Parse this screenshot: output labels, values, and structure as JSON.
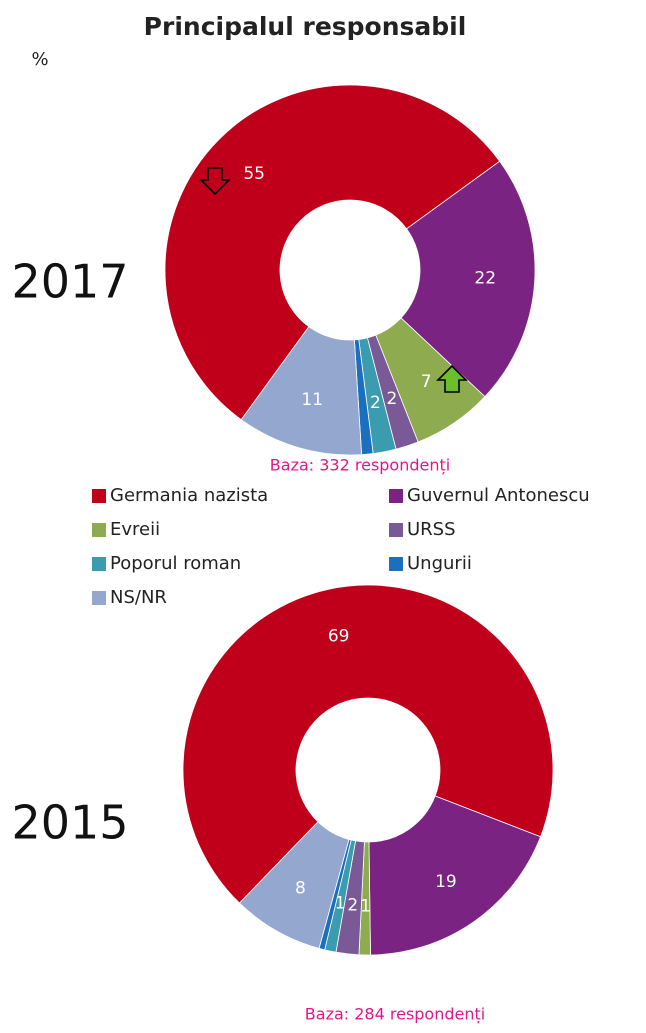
{
  "chart_data": {
    "type": "donut",
    "title": "Principalul responsabil",
    "unit_label": "%",
    "categories": [
      "Germania nazista",
      "Guvernul Antonescu",
      "Evreii",
      "URSS",
      "Poporul roman",
      "Ungurii",
      "NS/NR"
    ],
    "colors": [
      "#c0001a",
      "#7b2382",
      "#8fab4f",
      "#7a5a96",
      "#3b9cb0",
      "#1a6fbf",
      "#94a8cf"
    ],
    "series": [
      {
        "name": "2017",
        "note": "Baza: 332 respondenți",
        "start_angle": 216,
        "values": [
          55,
          22,
          7,
          2,
          2,
          1,
          11
        ],
        "value_labels": [
          "55",
          "22",
          "7",
          "2",
          "2",
          null,
          "11"
        ]
      },
      {
        "name": "2015",
        "note": "Baza: 284 respondenți",
        "start_angle": 224,
        "values": [
          69,
          19,
          1,
          2,
          1,
          0.5,
          8
        ],
        "value_labels": [
          "69",
          "19",
          "1",
          "2",
          "1",
          null,
          "8"
        ]
      }
    ]
  }
}
